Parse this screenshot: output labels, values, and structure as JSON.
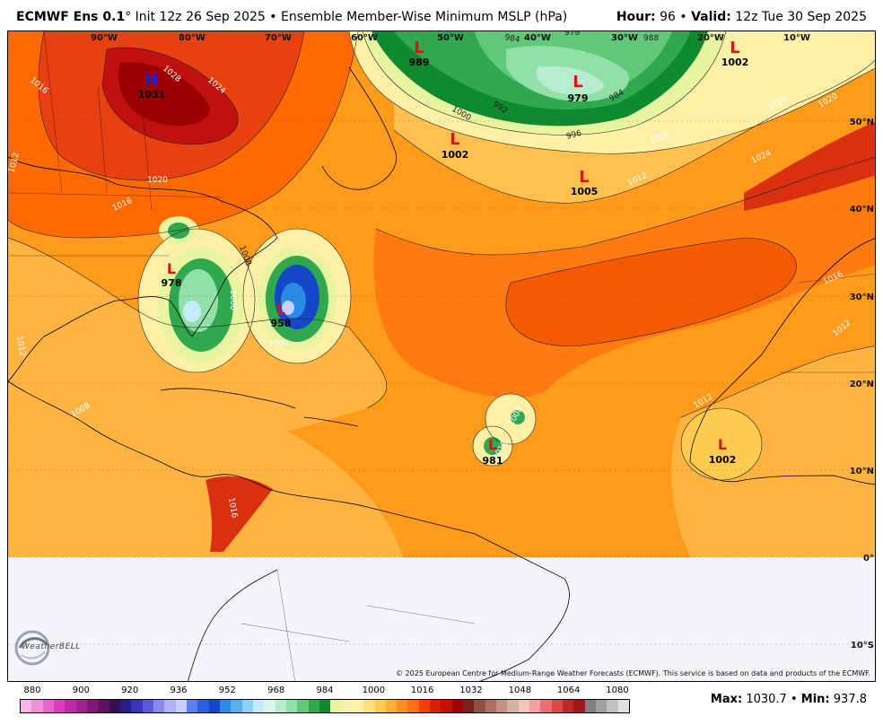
{
  "header": {
    "model": "ECMWF Ens 0.1",
    "degree": "°",
    "init": "Init 12z 26 Sep 2025",
    "bullet": "•",
    "product": "Ensemble Member-Wise Minimum MSLP (hPa)",
    "hour_label": "Hour:",
    "hour_value": "96",
    "valid_label": "Valid:",
    "valid_value": "12z Tue 30 Sep 2025"
  },
  "map": {
    "lon_labels": [
      "90°W",
      "80°W",
      "70°W",
      "60°W",
      "50°W",
      "40°W",
      "30°W",
      "20°W",
      "10°W"
    ],
    "lat_labels": [
      "50°N",
      "40°N",
      "30°N",
      "20°N",
      "10°N",
      "0°",
      "10°S"
    ],
    "pressure_centers": [
      {
        "type": "H",
        "value": "1031",
        "color": "#1a1aff"
      },
      {
        "type": "L",
        "value": "989",
        "color": "#e01010"
      },
      {
        "type": "L",
        "value": "979",
        "color": "#e01010"
      },
      {
        "type": "L",
        "value": "1002",
        "color": "#e01010"
      },
      {
        "type": "L",
        "value": "1002",
        "color": "#e01010"
      },
      {
        "type": "L",
        "value": "1005",
        "color": "#e01010"
      },
      {
        "type": "L",
        "value": "978",
        "color": "#e01010"
      },
      {
        "type": "L",
        "value": "958",
        "color": "#e01010"
      },
      {
        "type": "L",
        "value": "981",
        "color": "#e01010"
      },
      {
        "type": "L",
        "value": "1002",
        "color": "#e01010"
      }
    ],
    "contour_labels": [
      "1016",
      "1028",
      "1024",
      "1012",
      "1020",
      "1016",
      "984",
      "976",
      "988",
      "992",
      "1000",
      "996",
      "1008",
      "1016",
      "1020",
      "1024",
      "1012",
      "1008",
      "1000",
      "1004",
      "1016",
      "1012",
      "1012",
      "1012",
      "1008",
      "1012",
      "1016",
      "1008"
    ],
    "credit": "© 2025 European Centre for Medium-Range Weather Forecasts (ECMWF). This service is based on data and products of the ECMWF."
  },
  "logo": {
    "text": "WeatherBELL"
  },
  "colorbar": {
    "ticks": [
      "880",
      "900",
      "920",
      "936",
      "952",
      "968",
      "984",
      "1000",
      "1016",
      "1032",
      "1048",
      "1064",
      "1080"
    ],
    "colors": [
      "#f7b6e6",
      "#f08fd9",
      "#e865cc",
      "#dc3ebd",
      "#c12aa6",
      "#a0228e",
      "#801a75",
      "#5e1361",
      "#3a0e56",
      "#2a1a8a",
      "#3a34b8",
      "#5a5ae0",
      "#8888f0",
      "#b0b0f8",
      "#c8d0ff",
      "#6080f0",
      "#2860e0",
      "#1448c8",
      "#2a8ae8",
      "#58b0f0",
      "#90d0f8",
      "#c4ecfc",
      "#d8f4ec",
      "#b8ecd0",
      "#90e0a8",
      "#60c878",
      "#30a850",
      "#108a30",
      "#e8f4a0",
      "#f8f0b0",
      "#fff0a8",
      "#ffe080",
      "#ffcc50",
      "#ffb030",
      "#ff9020",
      "#ff7010",
      "#f04000",
      "#d82000",
      "#c01000",
      "#a00000",
      "#7a2020",
      "#905040",
      "#a87060",
      "#c09080",
      "#d8b0a0",
      "#f0c8b8",
      "#f4a0a0",
      "#e87070",
      "#d84848",
      "#c02828",
      "#a01818",
      "#808080",
      "#a0a0a0",
      "#c0c0c0",
      "#e0e0e0"
    ]
  },
  "stats": {
    "max_label": "Max:",
    "max_value": "1030.7",
    "bullet": "•",
    "min_label": "Min:",
    "min_value": "937.8"
  }
}
